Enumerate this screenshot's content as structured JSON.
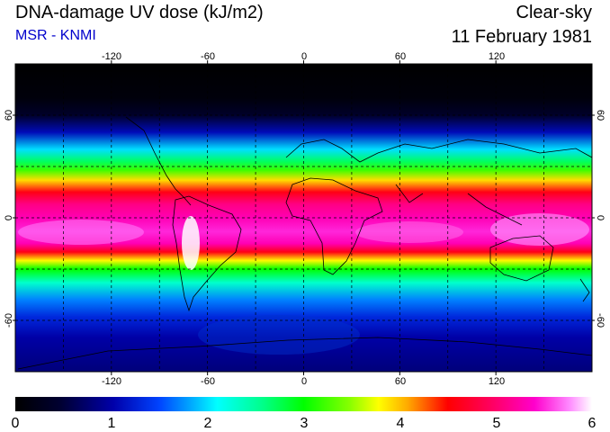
{
  "header": {
    "title": "DNA-damage UV dose (kJ/m2)",
    "subtitle": "MSR - KNMI",
    "mode": "Clear-sky",
    "date": "11 February 1981"
  },
  "map": {
    "projection": "equirectangular",
    "lon_range": [
      -180,
      180
    ],
    "lat_range": [
      -90,
      90
    ],
    "lon_ticks": [
      -120,
      -60,
      0,
      60,
      120
    ],
    "lon_tick_labels": [
      "-120",
      "-60",
      "0",
      "60",
      "120"
    ],
    "lat_ticks": [
      60,
      0,
      -60
    ],
    "lat_tick_labels": [
      "60",
      "0",
      "-60"
    ],
    "grid": "dashed, 30 deg",
    "colors": {
      "frame": "#000000",
      "coastline": "#000000",
      "grid": "#000000"
    }
  },
  "colorbar": {
    "min": 0,
    "max": 6,
    "tick_labels": [
      "0",
      "1",
      "2",
      "3",
      "4",
      "5",
      "6"
    ],
    "stops": [
      [
        0.0,
        "#000000"
      ],
      [
        0.08,
        "#000033"
      ],
      [
        0.17,
        "#0000aa"
      ],
      [
        0.25,
        "#0044ff"
      ],
      [
        0.3,
        "#00a0ff"
      ],
      [
        0.35,
        "#00ffff"
      ],
      [
        0.43,
        "#00ff88"
      ],
      [
        0.5,
        "#00ff00"
      ],
      [
        0.58,
        "#88ff00"
      ],
      [
        0.63,
        "#ffff00"
      ],
      [
        0.68,
        "#ffaa00"
      ],
      [
        0.75,
        "#ff0000"
      ],
      [
        0.83,
        "#ff0066"
      ],
      [
        0.9,
        "#ff00cc"
      ],
      [
        0.96,
        "#ff88ff"
      ],
      [
        1.0,
        "#ffffff"
      ]
    ]
  }
}
